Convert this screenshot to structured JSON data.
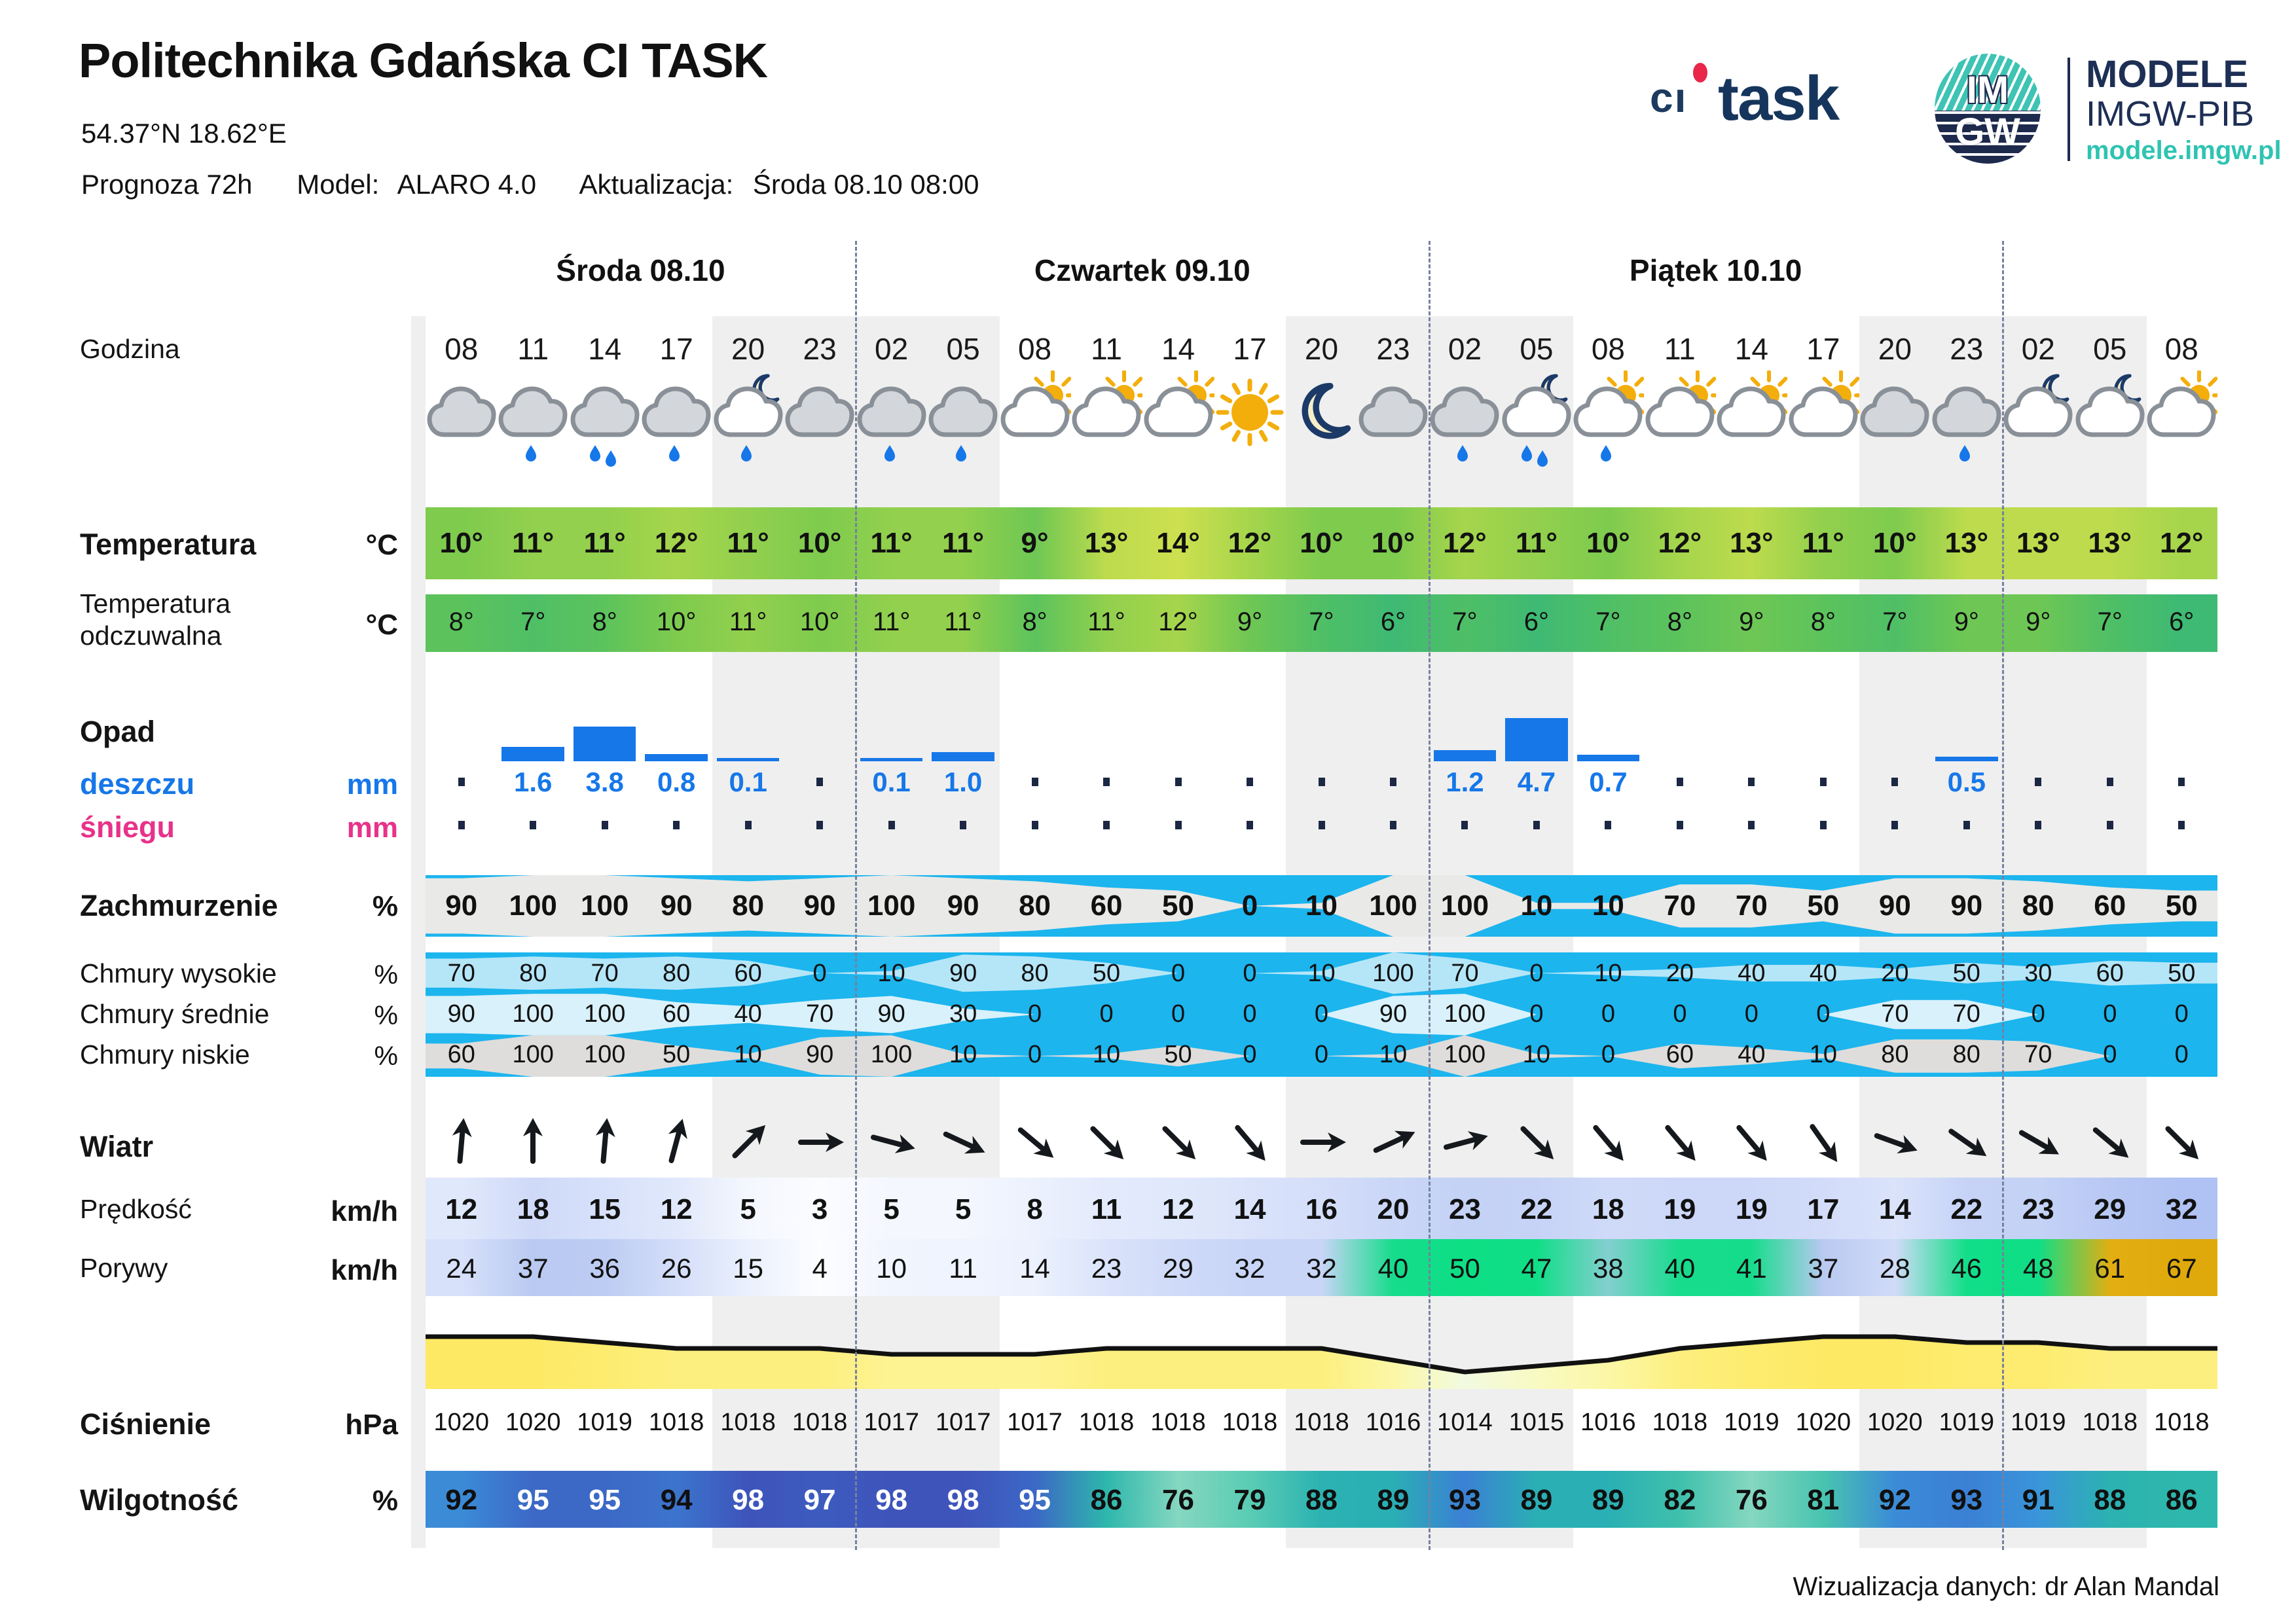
{
  "header": {
    "title": "Politechnika Gdańska CI TASK",
    "coordinates": "54.37°N  18.62°E",
    "forecast_label": "Prognoza 72h",
    "model_label": "Model:",
    "model_value": "ALARO 4.0",
    "update_label": "Aktualizacja:",
    "update_value": "Środa 08.10 08:00"
  },
  "logos": {
    "citask_prefix": "cı",
    "citask_word": "task",
    "imgw_top": "IM",
    "imgw_bottom": "GW",
    "modele_title": "MODELE",
    "modele_subtitle": "IMGW-PIB",
    "modele_url": "modele.imgw.pl"
  },
  "row_labels": {
    "hour": {
      "label": "Godzina"
    },
    "temperature": {
      "label": "Temperatura",
      "unit": "°C"
    },
    "feels": {
      "label": "Temperatura odczuwalna",
      "unit": "°C"
    },
    "precip": {
      "label": "Opad"
    },
    "rain": {
      "label": "deszczu",
      "unit": "mm"
    },
    "snow": {
      "label": "śniegu",
      "unit": "mm"
    },
    "cloud_total": {
      "label": "Zachmurzenie",
      "unit": "%"
    },
    "cloud_high": {
      "label": "Chmury wysokie",
      "unit": "%"
    },
    "cloud_mid": {
      "label": "Chmury średnie",
      "unit": "%"
    },
    "cloud_low": {
      "label": "Chmury niskie",
      "unit": "%"
    },
    "wind": {
      "label": "Wiatr"
    },
    "wind_speed": {
      "label": "Prędkość",
      "unit": "km/h"
    },
    "wind_gust": {
      "label": "Porywy",
      "unit": "km/h"
    },
    "pressure": {
      "label": "Ciśnienie",
      "unit": "hPa"
    },
    "humidity": {
      "label": "Wilgotność",
      "unit": "%"
    }
  },
  "colors": {
    "rain_accent": "#1677e8",
    "snow_accent": "#e83289",
    "cloud_background": "#1cb5ee",
    "cloud_total_band": "#e9e9e7",
    "cloud_high_band": "#b5e6f8",
    "cloud_mid_band": "#d9f1fb",
    "cloud_low_band": "#dedddb",
    "night_band": "#efefef",
    "separator": "#76819f",
    "gust_green": "#12dd89",
    "gust_amber": "#e2ae12",
    "pressure_line": "#111111",
    "sun": "#f3ae0b",
    "moon_outline": "#1c3a68"
  },
  "chart_data": {
    "type": "table",
    "title": "Meteogram - Prognoza 72h",
    "day_groups": [
      {
        "label": "Środa 08.10",
        "count": 6
      },
      {
        "label": "Czwartek 09.10",
        "count": 8
      },
      {
        "label": "Piątek 10.10",
        "count": 8
      },
      {
        "label": "",
        "count": 3
      }
    ],
    "hours": [
      "08",
      "11",
      "14",
      "17",
      "20",
      "23",
      "02",
      "05",
      "08",
      "11",
      "14",
      "17",
      "20",
      "23",
      "02",
      "05",
      "08",
      "11",
      "14",
      "17",
      "20",
      "23",
      "02",
      "05",
      "08"
    ],
    "icons": [
      "cloud",
      "cloud-rain1",
      "cloud-rain2",
      "cloud-rain1",
      "moon-cloud-rain1",
      "cloud",
      "cloud-rain1",
      "cloud-rain1",
      "sun-cloud",
      "sun-cloud",
      "sun-cloud",
      "sun",
      "moon",
      "cloud",
      "cloud-rain1",
      "moon-cloud-rain2",
      "sun-cloud-rain1",
      "sun-cloud",
      "sun-cloud",
      "sun-cloud",
      "cloud",
      "cloud-rain1",
      "moon-cloud",
      "moon-cloud",
      "sun-cloud"
    ],
    "series": {
      "temperature": {
        "name": "Temperatura",
        "unit": "°C",
        "values": [
          10,
          11,
          11,
          12,
          11,
          10,
          11,
          11,
          9,
          13,
          14,
          12,
          10,
          10,
          12,
          11,
          10,
          12,
          13,
          11,
          10,
          13,
          13,
          13,
          12
        ]
      },
      "feels_like": {
        "name": "Temperatura odczuwalna",
        "unit": "°C",
        "values": [
          8,
          7,
          8,
          10,
          11,
          10,
          11,
          11,
          8,
          11,
          12,
          9,
          7,
          6,
          7,
          6,
          7,
          8,
          9,
          8,
          7,
          9,
          9,
          7,
          6
        ]
      },
      "rain_mm": {
        "name": "Opad deszczu",
        "unit": "mm",
        "values": [
          "-",
          "1.6",
          "3.8",
          "0.8",
          "0.1",
          "-",
          "0.1",
          "1.0",
          "-",
          "-",
          "-",
          "-",
          "-",
          "-",
          "1.2",
          "4.7",
          "0.7",
          "-",
          "-",
          "-",
          "-",
          "0.5",
          "-",
          "-",
          "-"
        ]
      },
      "snow_mm": {
        "name": "Opad śniegu",
        "unit": "mm",
        "values": [
          "-",
          "-",
          "-",
          "-",
          "-",
          "-",
          "-",
          "-",
          "-",
          "-",
          "-",
          "-",
          "-",
          "-",
          "-",
          "-",
          "-",
          "-",
          "-",
          "-",
          "-",
          "-",
          "-",
          "-",
          "-"
        ]
      },
      "cloud_total": {
        "name": "Zachmurzenie",
        "unit": "%",
        "values": [
          90,
          100,
          100,
          90,
          80,
          90,
          100,
          90,
          80,
          60,
          50,
          0,
          10,
          100,
          100,
          10,
          10,
          70,
          70,
          50,
          90,
          90,
          80,
          60,
          50
        ]
      },
      "cloud_high": {
        "name": "Chmury wysokie",
        "unit": "%",
        "values": [
          70,
          80,
          70,
          80,
          60,
          0,
          10,
          90,
          80,
          50,
          0,
          0,
          10,
          100,
          70,
          0,
          10,
          20,
          40,
          40,
          20,
          50,
          30,
          60,
          50
        ]
      },
      "cloud_mid": {
        "name": "Chmury średnie",
        "unit": "%",
        "values": [
          90,
          100,
          100,
          60,
          40,
          70,
          90,
          30,
          0,
          0,
          0,
          0,
          0,
          90,
          100,
          0,
          0,
          0,
          0,
          0,
          70,
          70,
          0,
          0,
          0
        ]
      },
      "cloud_low": {
        "name": "Chmury niskie",
        "unit": "%",
        "values": [
          60,
          100,
          100,
          50,
          10,
          90,
          100,
          10,
          0,
          10,
          50,
          0,
          0,
          10,
          100,
          10,
          0,
          60,
          40,
          10,
          80,
          80,
          70,
          0,
          0
        ]
      },
      "wind_direction_deg": {
        "name": "Wiatr kierunek",
        "unit": "deg",
        "values": [
          5,
          0,
          5,
          15,
          45,
          90,
          105,
          115,
          130,
          135,
          135,
          140,
          90,
          65,
          75,
          135,
          140,
          140,
          140,
          145,
          110,
          125,
          120,
          130,
          135
        ]
      },
      "wind_speed_kmh": {
        "name": "Prędkość",
        "unit": "km/h",
        "values": [
          12,
          18,
          15,
          12,
          5,
          3,
          5,
          5,
          8,
          11,
          12,
          14,
          16,
          20,
          23,
          22,
          18,
          19,
          19,
          17,
          14,
          22,
          23,
          29,
          32
        ]
      },
      "wind_gust_kmh": {
        "name": "Porywy",
        "unit": "km/h",
        "values": [
          24,
          37,
          36,
          26,
          15,
          4,
          10,
          11,
          14,
          23,
          29,
          32,
          32,
          40,
          50,
          47,
          38,
          40,
          41,
          37,
          28,
          46,
          48,
          61,
          67
        ]
      },
      "pressure_hpa": {
        "name": "Ciśnienie",
        "unit": "hPa",
        "values": [
          1020,
          1020,
          1019,
          1018,
          1018,
          1018,
          1017,
          1017,
          1017,
          1018,
          1018,
          1018,
          1018,
          1016,
          1014,
          1015,
          1016,
          1018,
          1019,
          1020,
          1020,
          1019,
          1019,
          1018,
          1018
        ]
      },
      "humidity_pct": {
        "name": "Wilgotność",
        "unit": "%",
        "values": [
          92,
          95,
          95,
          94,
          98,
          97,
          98,
          98,
          95,
          86,
          76,
          79,
          88,
          89,
          93,
          89,
          89,
          82,
          76,
          81,
          92,
          93,
          91,
          88,
          86
        ]
      }
    }
  },
  "footer": {
    "credit": "Wizualizacja danych: dr Alan Mandal"
  }
}
